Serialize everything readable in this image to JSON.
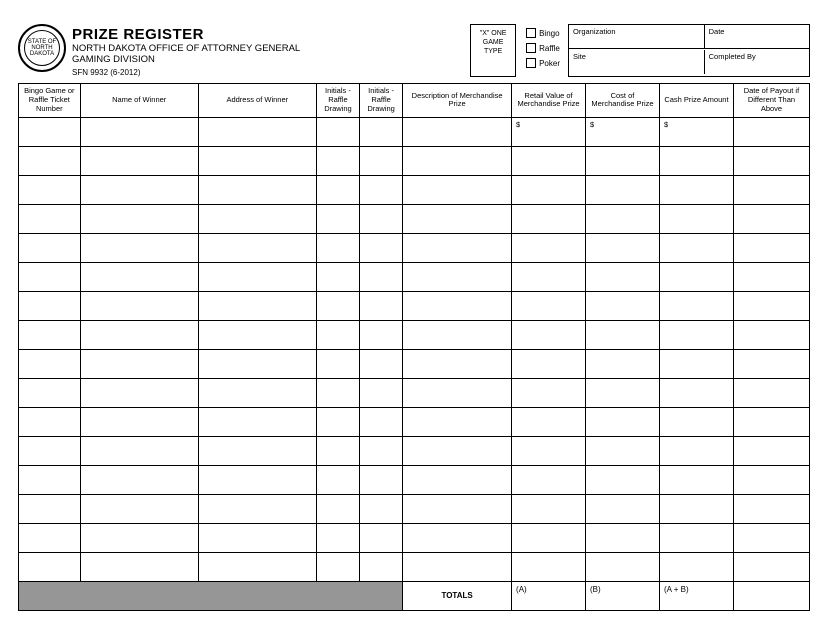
{
  "header": {
    "title": "PRIZE REGISTER",
    "agency_line1": "NORTH DAKOTA OFFICE OF ATTORNEY GENERAL",
    "agency_line2": "GAMING DIVISION",
    "form_id": "SFN 9932 (6-2012)",
    "seal_text": "STATE OF NORTH DAKOTA"
  },
  "game_type": {
    "box_line1": "\"X\" ONE",
    "box_line2": "GAME",
    "box_line3": "TYPE",
    "options": [
      "Bingo",
      "Raffle",
      "Poker"
    ]
  },
  "meta": {
    "organization_label": "Organization",
    "date_label": "Date",
    "site_label": "Site",
    "completed_by_label": "Completed By"
  },
  "table": {
    "columns": [
      "Bingo Game or Raffle Ticket Number",
      "Name of Winner",
      "Address of Winner",
      "Initials - Raffle Drawing",
      "Initials - Raffle Drawing",
      "Description of Merchandise Prize",
      "Retail Value of Merchandise Prize",
      "Cost of Merchandise Prize",
      "Cash Prize Amount",
      "Date of Payout if Different Than Above"
    ],
    "first_row": {
      "col7": "$",
      "col8": "$",
      "col9": "$"
    },
    "blank_rows": 15,
    "totals": {
      "label": "TOTALS",
      "a": "(A)",
      "b": "(B)",
      "ab": "(A + B)"
    }
  }
}
